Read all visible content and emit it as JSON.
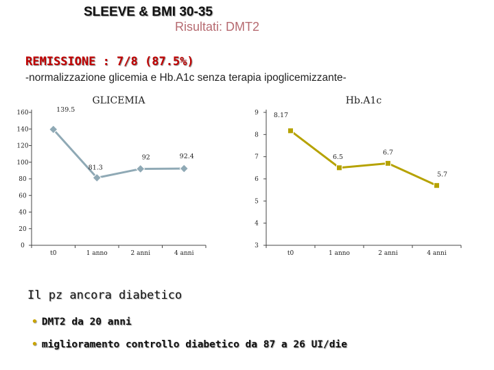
{
  "header": {
    "title": "SLEEVE & BMI 30-35",
    "subtitle": "Risultati: DMT2",
    "remission": "REMISSIONE : 7/8  (87.5%)",
    "normalization": "-normalizzazione glicemia e Hb.A1c senza terapia ipoglicemizzante-"
  },
  "chart_data": [
    {
      "type": "line",
      "title": "GLICEMIA",
      "categories": [
        "t0",
        "1 anno",
        "2 anni",
        "4 anni"
      ],
      "values": [
        139.5,
        81.3,
        92,
        92.4
      ],
      "data_labels": [
        "139.5",
        "81.3",
        "92",
        "92.4"
      ],
      "y_ticks": [
        "0",
        "20",
        "40",
        "60",
        "80",
        "100",
        "120",
        "140",
        "160"
      ],
      "ylim": [
        0,
        160
      ],
      "color": "#8fa9b5"
    },
    {
      "type": "line",
      "title": "Hb.A1c",
      "categories": [
        "t0",
        "1 anno",
        "2 anni",
        "4 anni"
      ],
      "values": [
        8.17,
        6.5,
        6.7,
        5.7
      ],
      "data_labels": [
        "8.17",
        "6.5",
        "6.7",
        "5.7"
      ],
      "y_ticks": [
        "3",
        "4",
        "5",
        "6",
        "7",
        "8",
        "9"
      ],
      "ylim": [
        3,
        9
      ],
      "color": "#b6a200"
    }
  ],
  "notes": {
    "diabetic": "Il pz ancora diabetico",
    "bullets": [
      "DMT2 da 20 anni",
      "miglioramento controllo diabetico da 87 a 26 UI/die"
    ]
  }
}
